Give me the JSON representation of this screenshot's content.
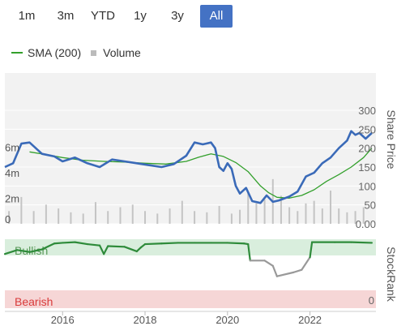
{
  "range_buttons": [
    {
      "label": "1m",
      "active": false
    },
    {
      "label": "3m",
      "active": false
    },
    {
      "label": "YTD",
      "active": false
    },
    {
      "label": "1y",
      "active": false
    },
    {
      "label": "3y",
      "active": false
    },
    {
      "label": "All",
      "active": true
    }
  ],
  "legend": {
    "sma_label": "SMA (200)",
    "volume_label": "Volume"
  },
  "colors": {
    "price": "#3a6ab8",
    "sma": "#33a02c",
    "volume": "#c4c4c4",
    "rank_high": "#2e8b3a",
    "rank_low": "#999999",
    "bullish_band": "#d9eedd",
    "bearish_band": "#f6d6d6",
    "bearish_text": "#d93b3b",
    "active_button": "#4472c4"
  },
  "chart_data": [
    {
      "type": "line",
      "xlabel": "",
      "ylabel": "Share Price",
      "ylim": [
        0,
        300
      ],
      "yticks": [
        0,
        50,
        100,
        150,
        200,
        250,
        300
      ],
      "ytick_labels": [
        "0.00",
        "50",
        "100",
        "150",
        "200",
        "250",
        "300"
      ],
      "x_ticks": [
        "2016",
        "2018",
        "2020",
        "2022"
      ],
      "xlim": [
        2014.6,
        2023.6
      ],
      "series": [
        {
          "name": "Share Price",
          "x": [
            2014.6,
            2014.8,
            2015.0,
            2015.2,
            2015.5,
            2015.8,
            2016.0,
            2016.3,
            2016.6,
            2016.9,
            2017.2,
            2017.5,
            2017.8,
            2018.1,
            2018.4,
            2018.7,
            2019.0,
            2019.2,
            2019.4,
            2019.6,
            2019.7,
            2019.8,
            2019.9,
            2020.0,
            2020.1,
            2020.2,
            2020.3,
            2020.45,
            2020.6,
            2020.8,
            2020.95,
            2021.1,
            2021.25,
            2021.5,
            2021.7,
            2021.9,
            2022.1,
            2022.3,
            2022.5,
            2022.7,
            2022.9,
            2023.0,
            2023.1,
            2023.2,
            2023.35,
            2023.5
          ],
          "values": [
            150,
            160,
            212,
            215,
            185,
            178,
            165,
            175,
            160,
            150,
            170,
            165,
            160,
            155,
            150,
            158,
            180,
            215,
            210,
            215,
            200,
            150,
            140,
            160,
            145,
            100,
            80,
            95,
            60,
            55,
            75,
            58,
            62,
            72,
            85,
            125,
            135,
            160,
            175,
            200,
            220,
            245,
            235,
            240,
            225,
            240
          ]
        },
        {
          "name": "SMA (200)",
          "x": [
            2015.2,
            2015.6,
            2016.0,
            2016.5,
            2017.0,
            2017.5,
            2018.0,
            2018.5,
            2019.0,
            2019.3,
            2019.6,
            2019.9,
            2020.2,
            2020.5,
            2020.8,
            2021.0,
            2021.2,
            2021.5,
            2021.8,
            2022.1,
            2022.4,
            2022.7,
            2023.0,
            2023.3,
            2023.5
          ],
          "values": [
            190,
            183,
            175,
            168,
            165,
            163,
            160,
            158,
            165,
            176,
            185,
            178,
            162,
            138,
            100,
            82,
            70,
            68,
            75,
            90,
            112,
            130,
            150,
            175,
            200
          ]
        }
      ]
    },
    {
      "type": "bar",
      "name_hint": "Volume",
      "ylabel": "",
      "ylim": [
        0,
        8
      ],
      "yticks": [
        2,
        4,
        6
      ],
      "ytick_labels": [
        "2m",
        "4m",
        "6m"
      ],
      "x": [
        2014.7,
        2015.0,
        2015.3,
        2015.6,
        2015.9,
        2016.2,
        2016.5,
        2016.8,
        2017.1,
        2017.4,
        2017.7,
        2018.0,
        2018.3,
        2018.6,
        2018.9,
        2019.2,
        2019.5,
        2019.8,
        2020.1,
        2020.3,
        2020.5,
        2020.7,
        2020.9,
        2021.1,
        2021.3,
        2021.5,
        2021.7,
        2021.9,
        2022.1,
        2022.3,
        2022.5,
        2022.7,
        2022.9,
        2023.1,
        2023.3
      ],
      "values": [
        1.0,
        2.1,
        1.0,
        1.5,
        1.2,
        0.9,
        0.8,
        1.7,
        1.0,
        1.3,
        1.5,
        1.0,
        0.8,
        1.2,
        1.8,
        1.0,
        0.9,
        1.4,
        0.8,
        1.1,
        2.5,
        1.6,
        1.9,
        3.5,
        2.2,
        1.3,
        1.0,
        1.6,
        1.8,
        1.2,
        2.6,
        1.2,
        0.9,
        1.0,
        1.3
      ]
    },
    {
      "type": "line",
      "ylabel": "StockRank",
      "ylim": [
        0,
        100
      ],
      "yticks": [
        0
      ],
      "ytick_labels": [
        "0"
      ],
      "bands": [
        {
          "label": "Bullish",
          "from": 80,
          "to": 100
        },
        {
          "label": "Bearish",
          "from": 0,
          "to": 15
        }
      ],
      "series": [
        {
          "name": "StockRank",
          "x": [
            2014.6,
            2014.9,
            2015.2,
            2015.5,
            2015.8,
            2016.0,
            2016.3,
            2016.6,
            2016.9,
            2017.0,
            2017.1,
            2017.5,
            2017.8,
            2017.9,
            2018.0,
            2018.4,
            2018.8,
            2019.2,
            2019.6,
            2020.0,
            2020.4,
            2020.5,
            2020.55,
            2020.9,
            2021.1,
            2021.2,
            2021.6,
            2021.8,
            2022.0,
            2022.05,
            2022.6,
            2023.0,
            2023.5
          ],
          "values": [
            80,
            86,
            83,
            87,
            96,
            97,
            98,
            95,
            93,
            80,
            92,
            91,
            84,
            90,
            95,
            96,
            97,
            97,
            97,
            97,
            96,
            95,
            70,
            70,
            62,
            46,
            52,
            56,
            75,
            98,
            98,
            98,
            97
          ]
        }
      ]
    }
  ]
}
